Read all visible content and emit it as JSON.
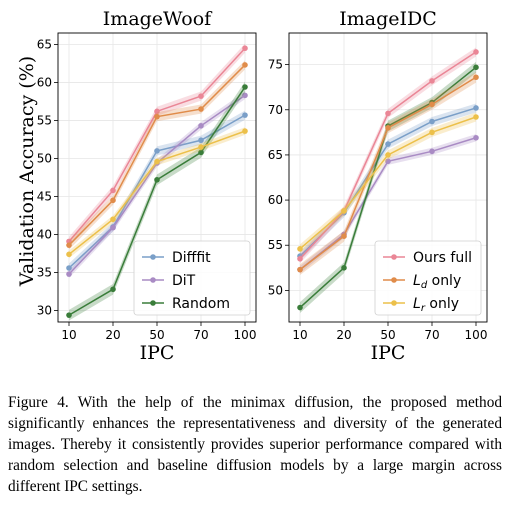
{
  "chart_data": [
    {
      "type": "line",
      "title": "ImageWoof",
      "xlabel": "IPC",
      "ylabel": "Validation Accuracy (%)",
      "categories": [
        "10",
        "20",
        "50",
        "70",
        "100"
      ],
      "ylim": [
        28.5,
        66.5
      ],
      "yticks": [
        30,
        35,
        40,
        45,
        50,
        55,
        60,
        65
      ],
      "grid": true,
      "legend_position": "bottom-right",
      "legend": [
        "Difffit",
        "DiT",
        "Random"
      ],
      "series": [
        {
          "name": "Difffit",
          "color": "#7a9fc8",
          "values": [
            35.6,
            41.0,
            51.0,
            52.4,
            55.7
          ],
          "band": 0.6
        },
        {
          "name": "DiT",
          "color": "#a98bc4",
          "values": [
            34.8,
            40.9,
            49.4,
            54.3,
            58.3
          ],
          "band": 0.5
        },
        {
          "name": "Random",
          "color": "#3a7d3a",
          "values": [
            29.4,
            32.8,
            47.2,
            50.8,
            59.4
          ],
          "band": 0.7
        },
        {
          "name": "",
          "color": "#ea8696",
          "values": [
            39.1,
            45.8,
            56.2,
            58.2,
            64.5
          ],
          "band": 0.6
        },
        {
          "name": "",
          "color": "#e08c4a",
          "values": [
            38.6,
            44.5,
            55.5,
            56.5,
            62.3
          ],
          "band": 0.6
        },
        {
          "name": "",
          "color": "#ecc04a",
          "values": [
            37.4,
            42.0,
            49.6,
            51.5,
            53.6
          ],
          "band": 0.5
        }
      ]
    },
    {
      "type": "line",
      "title": "ImageIDC",
      "xlabel": "IPC",
      "ylabel": "",
      "categories": [
        "10",
        "20",
        "50",
        "70",
        "100"
      ],
      "ylim": [
        46.5,
        78.5
      ],
      "yticks": [
        50,
        55,
        60,
        65,
        70,
        75
      ],
      "grid": true,
      "legend_position": "bottom-right",
      "legend": [
        "Ours full",
        "L_d only",
        "L_r only"
      ],
      "series": [
        {
          "name": "",
          "color": "#7a9fc8",
          "values": [
            53.8,
            58.6,
            66.2,
            68.7,
            70.2
          ],
          "band": 0.5
        },
        {
          "name": "",
          "color": "#a98bc4",
          "values": [
            52.3,
            56.2,
            64.3,
            65.4,
            66.9
          ],
          "band": 0.4
        },
        {
          "name": "",
          "color": "#3a7d3a",
          "values": [
            48.1,
            52.5,
            68.2,
            70.8,
            74.7
          ],
          "band": 0.6
        },
        {
          "name": "Ours full",
          "color": "#ea8696",
          "values": [
            53.5,
            58.8,
            69.6,
            73.2,
            76.4
          ],
          "band": 0.5
        },
        {
          "name": "L_d only",
          "color": "#e08c4a",
          "values": [
            52.3,
            56.0,
            68.0,
            70.6,
            73.6
          ],
          "band": 0.6
        },
        {
          "name": "L_r only",
          "color": "#ecc04a",
          "values": [
            54.6,
            58.8,
            65.0,
            67.5,
            69.2
          ],
          "band": 0.5
        }
      ]
    }
  ],
  "caption": "Figure 4. With the help of the minimax diffusion, the proposed method significantly enhances the representativeness and diversity of the generated images. Thereby it consistently provides superior performance compared with random selection and baseline diffusion models by a large margin across different IPC settings."
}
